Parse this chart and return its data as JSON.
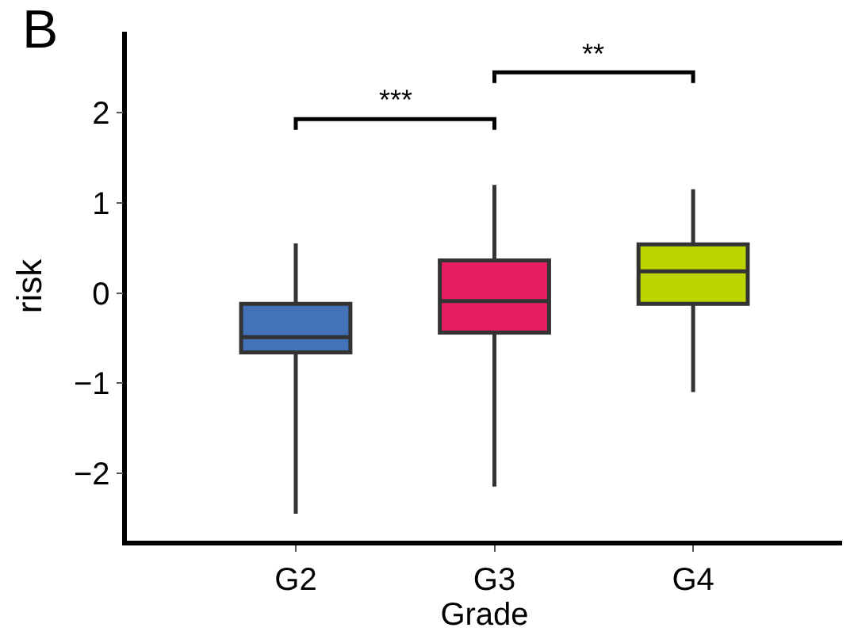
{
  "chart_data": {
    "type": "box",
    "xlabel": "Grade",
    "ylabel": "risk",
    "categories": [
      "G2",
      "G3",
      "G4"
    ],
    "boxes": [
      {
        "low": -2.45,
        "q1": -0.66,
        "median": -0.49,
        "q3": -0.12,
        "high": 0.55
      },
      {
        "low": -2.15,
        "q1": -0.44,
        "median": -0.09,
        "q3": 0.36,
        "high": 1.2
      },
      {
        "low": -1.1,
        "q1": -0.12,
        "median": 0.24,
        "q3": 0.54,
        "high": 1.15
      }
    ],
    "colors": [
      "#4472b8",
      "#e81c63",
      "#bdd400"
    ],
    "ylim": [
      -2.75,
      2.9
    ],
    "yticks": [
      -2,
      -1,
      0,
      1,
      2
    ],
    "grid": false,
    "annotations": [
      "B",
      "***",
      "**"
    ]
  }
}
